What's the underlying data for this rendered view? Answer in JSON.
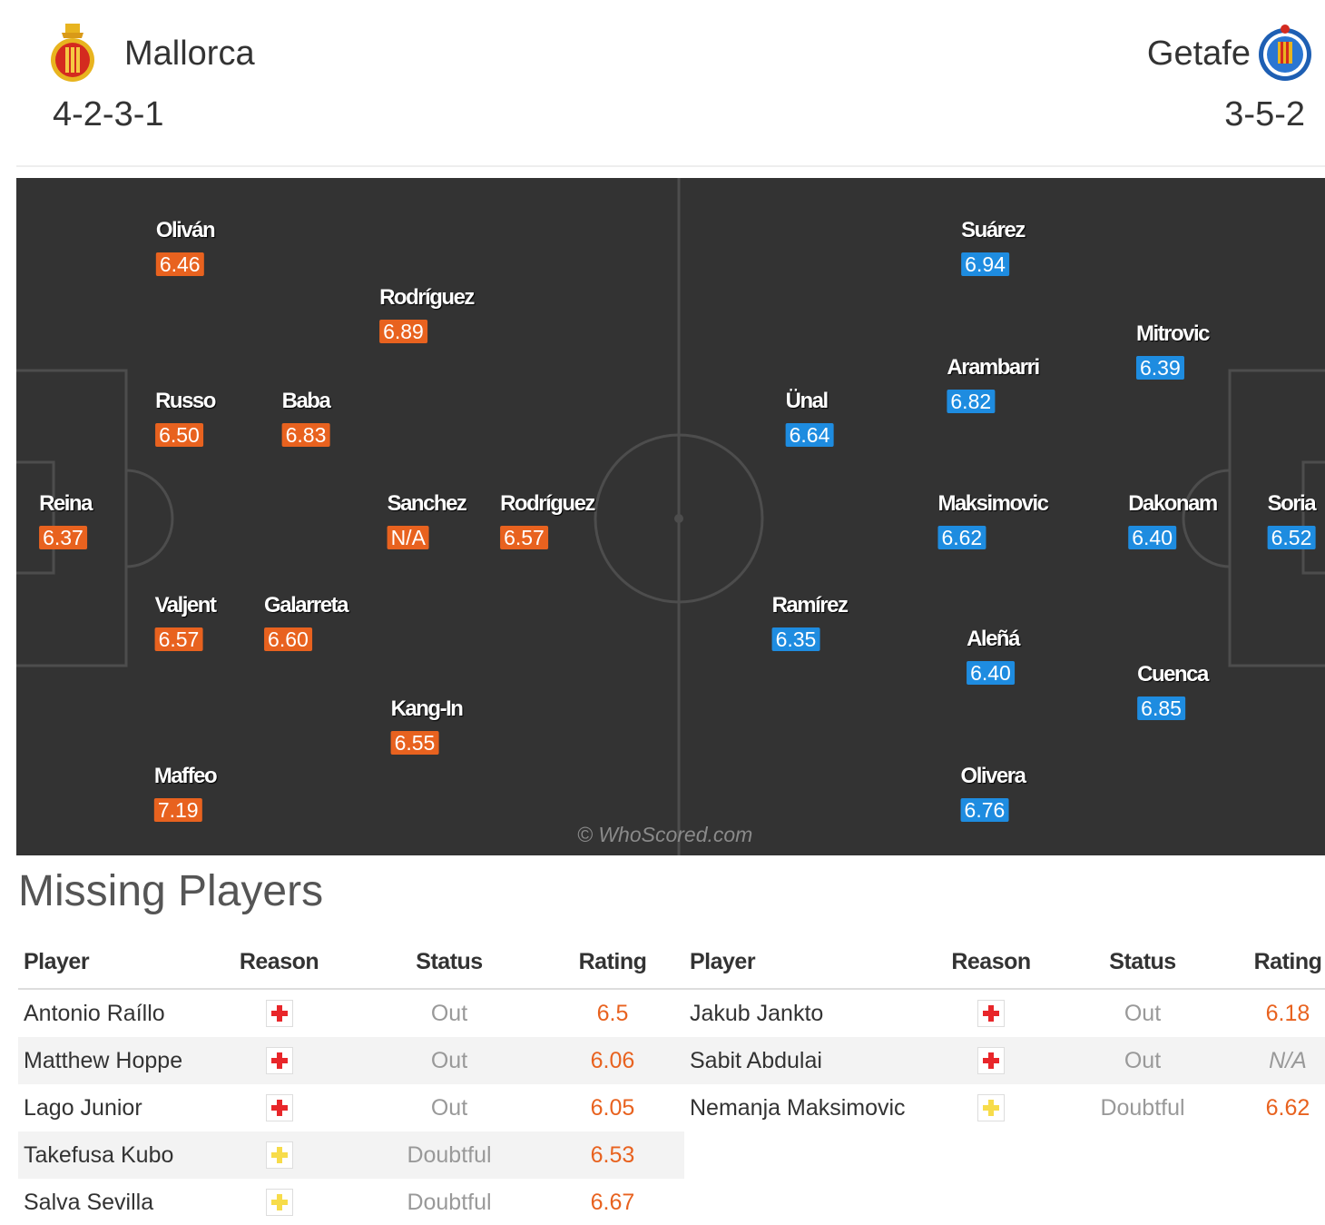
{
  "home": {
    "name": "Mallorca",
    "formation": "4-2-3-1",
    "crest_icon": "mallorca-crest-icon",
    "color": "#e8621f",
    "players": [
      {
        "name": "Oliván",
        "rating": "6.46"
      },
      {
        "name": "Rodríguez",
        "rating": "6.89"
      },
      {
        "name": "Russo",
        "rating": "6.50"
      },
      {
        "name": "Baba",
        "rating": "6.83"
      },
      {
        "name": "Reina",
        "rating": "6.37"
      },
      {
        "name": "Sanchez",
        "rating": "N/A"
      },
      {
        "name": "Rodríguez",
        "rating": "6.57"
      },
      {
        "name": "Valjent",
        "rating": "6.57"
      },
      {
        "name": "Galarreta",
        "rating": "6.60"
      },
      {
        "name": "Kang-In",
        "rating": "6.55"
      },
      {
        "name": "Maffeo",
        "rating": "7.19"
      }
    ]
  },
  "away": {
    "name": "Getafe",
    "formation": "3-5-2",
    "crest_icon": "getafe-crest-icon",
    "color": "#1e8ce0",
    "players": [
      {
        "name": "Suárez",
        "rating": "6.94"
      },
      {
        "name": "Mitrovic",
        "rating": "6.39"
      },
      {
        "name": "Arambarri",
        "rating": "6.82"
      },
      {
        "name": "Ünal",
        "rating": "6.64"
      },
      {
        "name": "Maksimovic",
        "rating": "6.62"
      },
      {
        "name": "Dakonam",
        "rating": "6.40"
      },
      {
        "name": "Soria",
        "rating": "6.52"
      },
      {
        "name": "Ramírez",
        "rating": "6.35"
      },
      {
        "name": "Aleñá",
        "rating": "6.40"
      },
      {
        "name": "Cuenca",
        "rating": "6.85"
      },
      {
        "name": "Olivera",
        "rating": "6.76"
      }
    ]
  },
  "watermark": "© WhoScored.com",
  "missing": {
    "title": "Missing Players",
    "columns": [
      "Player",
      "Reason",
      "Status",
      "Rating"
    ],
    "home_rows": [
      {
        "player": "Antonio Raíllo",
        "reason_icon": "injury-icon",
        "status": "Out",
        "rating": "6.5"
      },
      {
        "player": "Matthew Hoppe",
        "reason_icon": "injury-icon",
        "status": "Out",
        "rating": "6.06"
      },
      {
        "player": "Lago Junior",
        "reason_icon": "injury-icon",
        "status": "Out",
        "rating": "6.05"
      },
      {
        "player": "Takefusa Kubo",
        "reason_icon": "doubtful-icon",
        "status": "Doubtful",
        "rating": "6.53"
      },
      {
        "player": "Salva Sevilla",
        "reason_icon": "doubtful-icon",
        "status": "Doubtful",
        "rating": "6.67"
      }
    ],
    "away_rows": [
      {
        "player": "Jakub Jankto",
        "reason_icon": "injury-icon",
        "status": "Out",
        "rating": "6.18"
      },
      {
        "player": "Sabit Abdulai",
        "reason_icon": "injury-icon",
        "status": "Out",
        "rating": "N/A"
      },
      {
        "player": "Nemanja Maksimovic",
        "reason_icon": "doubtful-icon",
        "status": "Doubtful",
        "rating": "6.62"
      }
    ],
    "colors": {
      "out": "#e8262a",
      "doubtful": "#f7dc4a",
      "rating": "#e8621f"
    }
  }
}
